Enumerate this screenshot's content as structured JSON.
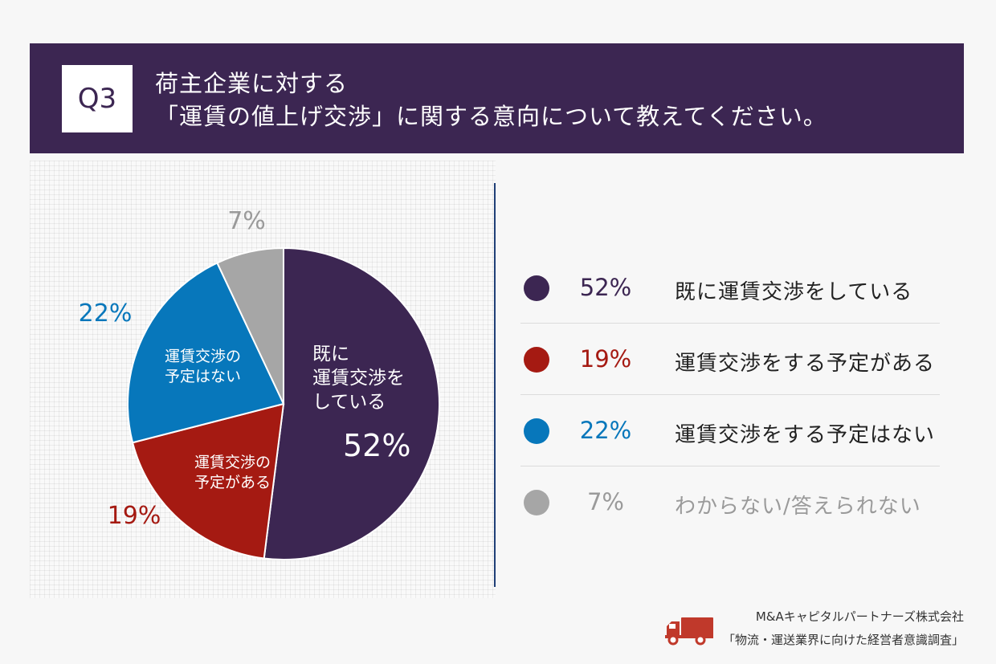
{
  "header": {
    "badge": "Q3",
    "title_line1": "荷主企業に対する",
    "title_line2": "「運賃の値上げ交渉」に関する意向について教えてください。"
  },
  "chart_data": {
    "type": "pie",
    "slices": [
      {
        "name": "既に運賃交渉をしている",
        "value": 52,
        "label": "52%",
        "color": "#3c2652",
        "inner_label_lines": [
          "既に",
          "運賃交渉を",
          "している"
        ],
        "inner_pct": "52%"
      },
      {
        "name": "運賃交渉をする予定がある",
        "value": 19,
        "label": "19%",
        "color": "#a51a12",
        "inner_label_lines": [
          "運賃交渉の",
          "予定がある"
        ]
      },
      {
        "name": "運賃交渉をする予定はない",
        "value": 22,
        "label": "22%",
        "color": "#0777bb",
        "inner_label_lines": [
          "運賃交渉の",
          "予定はない"
        ]
      },
      {
        "name": "わからない/答えられない",
        "value": 7,
        "label": "7%",
        "color": "#a6a6a6",
        "inner_label_lines": []
      }
    ]
  },
  "legend": [
    {
      "pct": "52%",
      "label": "既に運賃交渉をしている",
      "color": "#3c2652",
      "muted": false
    },
    {
      "pct": "19%",
      "label": "運賃交渉をする予定がある",
      "color": "#a51a12",
      "muted": false
    },
    {
      "pct": "22%",
      "label": "運賃交渉をする予定はない",
      "color": "#0777bb",
      "muted": false
    },
    {
      "pct": "7%",
      "label": "わからない/答えられない",
      "color": "#a6a6a6",
      "muted": true
    }
  ],
  "footer": {
    "company": "M&Aキャピタルパートナーズ株式会社",
    "survey": "「物流・運送業界に向けた経営者意識調査」",
    "truck_icon": "truck-icon",
    "truck_color": "#c0392b"
  }
}
